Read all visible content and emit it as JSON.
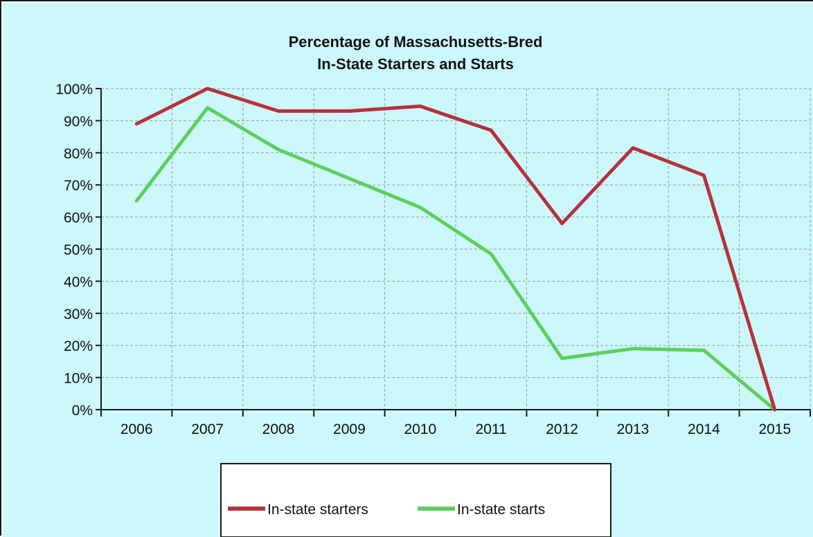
{
  "chart_data": {
    "type": "line",
    "title": "Percentage of Massachusetts-Bred",
    "subtitle": "In-State Starters and Starts",
    "categories": [
      "2006",
      "2007",
      "2008",
      "2009",
      "2010",
      "2011",
      "2012",
      "2013",
      "2014",
      "2015"
    ],
    "y_ticks": [
      "0%",
      "10%",
      "20%",
      "30%",
      "40%",
      "50%",
      "60%",
      "70%",
      "80%",
      "90%",
      "100%"
    ],
    "ylim": [
      0,
      100
    ],
    "grid": true,
    "legend_position": "bottom",
    "series": [
      {
        "name": "In-state starters",
        "color": "#b5323a",
        "values": [
          89,
          100,
          93,
          93,
          94.5,
          87,
          58,
          81.5,
          73,
          0
        ]
      },
      {
        "name": "In-state starts",
        "color": "#5ccf5c",
        "values": [
          65,
          94,
          81,
          72,
          63,
          48.5,
          16,
          19,
          18.5,
          0
        ]
      }
    ],
    "colors": {
      "background": "#ccf7fb",
      "grid": "#9a9a9a",
      "axis": "#1a1a1a"
    }
  }
}
